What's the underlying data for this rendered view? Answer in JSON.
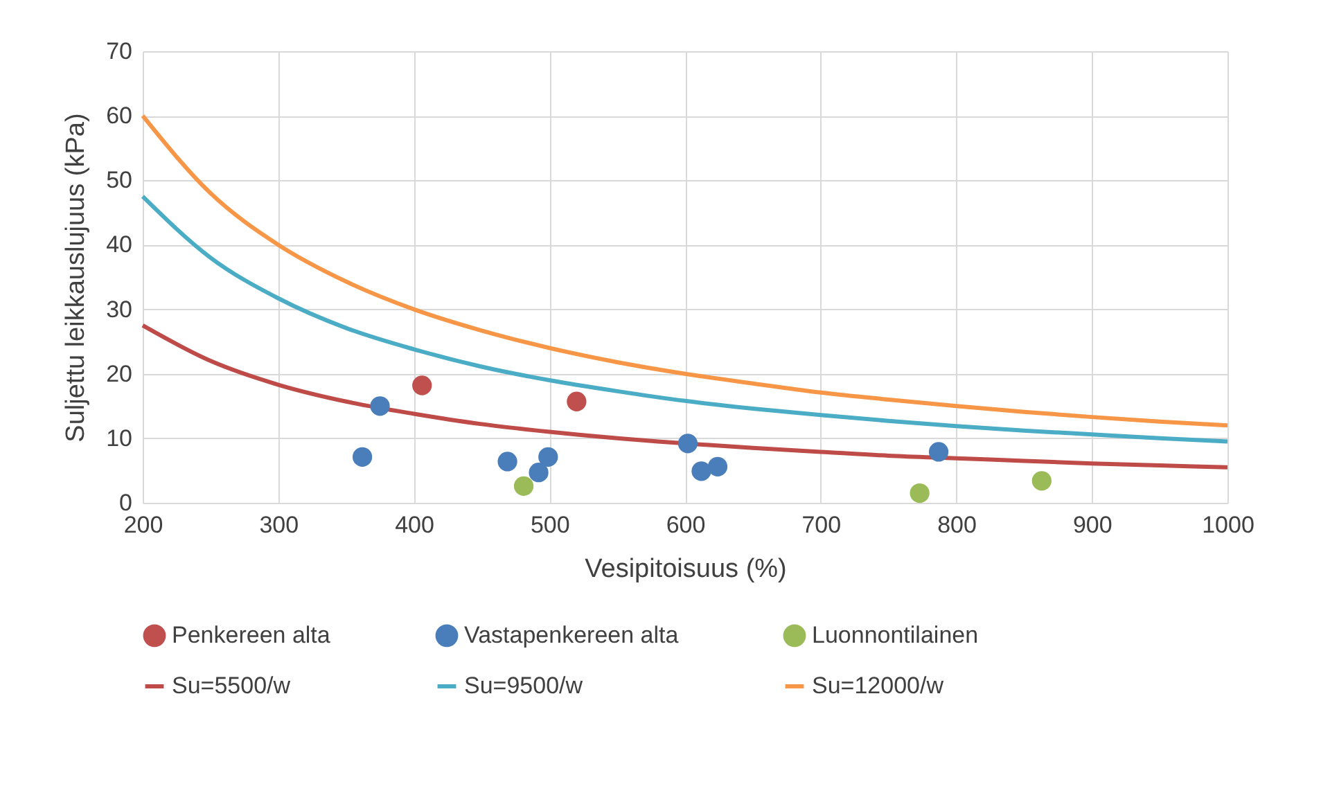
{
  "chart_data": {
    "type": "scatter",
    "xlabel": "Vesipitoisuus (%)",
    "ylabel": "Suljettu leikkauslujuus (kPa)",
    "xlim": [
      200,
      1000
    ],
    "xticks": [
      200,
      300,
      400,
      500,
      600,
      700,
      800,
      900,
      {
        "value": 1000,
        "label": "1000"
      }
    ],
    "ylim": [
      0,
      70
    ],
    "yticks": [
      0,
      10,
      20,
      30,
      40,
      50,
      60,
      70
    ],
    "grid": true,
    "legend": "bottom",
    "marker": "circle",
    "series": [
      {
        "name": "Penkereen alta",
        "color": "#c0504d",
        "x": [
          406,
          520
        ],
        "values": [
          18.2,
          15.7
        ]
      },
      {
        "name": "Vastapenkereen alta",
        "color": "#4a7ebb",
        "x": [
          362,
          375,
          469,
          492,
          499,
          602,
          612,
          624,
          787
        ],
        "values": [
          7.1,
          15.0,
          6.4,
          4.7,
          7.1,
          9.2,
          4.9,
          5.6,
          7.9
        ]
      },
      {
        "name": "Luonnontilainen",
        "color": "#9bbb59",
        "x": [
          481,
          773,
          863
        ],
        "values": [
          2.6,
          1.5,
          3.4
        ]
      },
      {
        "name": "Su=5500/w",
        "type": "line",
        "line_style": "solid",
        "marker": "none",
        "color": "#be4b48",
        "x": [
          200,
          250,
          300,
          350,
          400,
          450,
          500,
          550,
          580,
          650,
          700,
          750,
          800,
          850,
          900,
          950,
          1000
        ],
        "values": [
          27.5,
          22.0,
          18.3,
          15.7,
          13.8,
          12.2,
          11.0,
          10.0,
          9.5,
          8.5,
          7.9,
          7.3,
          6.9,
          6.5,
          6.1,
          5.8,
          5.5
        ]
      },
      {
        "name": "Su=9500/w",
        "type": "line",
        "line_style": "solid",
        "marker": "none",
        "color": "#4bacc6",
        "x": [
          200,
          250,
          300,
          350,
          400,
          450,
          500,
          550,
          600,
          650,
          700,
          750,
          800,
          850,
          900,
          950,
          1000
        ],
        "values": [
          47.5,
          38.0,
          31.7,
          27.1,
          23.8,
          21.1,
          19.0,
          17.3,
          15.8,
          14.6,
          13.6,
          12.7,
          11.9,
          11.2,
          10.6,
          10.0,
          9.5
        ]
      },
      {
        "name": "Su=12000/w",
        "type": "line",
        "line_style": "solid",
        "marker": "none",
        "color": "#f79646",
        "x": [
          200,
          250,
          300,
          350,
          400,
          450,
          500,
          550,
          600,
          650,
          700,
          750,
          800,
          850,
          900,
          950,
          1000
        ],
        "values": [
          60.0,
          48.0,
          40.0,
          34.3,
          30.0,
          26.7,
          24.0,
          21.8,
          20.0,
          18.5,
          17.1,
          16.0,
          15.0,
          14.1,
          13.3,
          12.6,
          12.0
        ]
      }
    ]
  }
}
